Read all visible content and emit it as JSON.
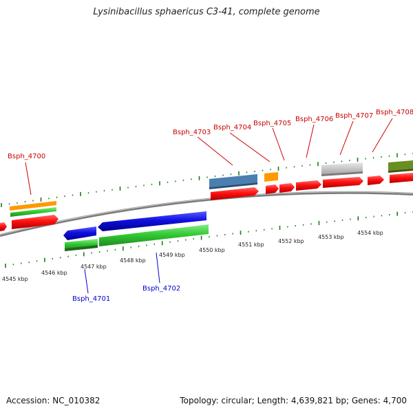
{
  "title": "Lysinibacillus sphaericus C3-41, complete genome",
  "footer": {
    "accession": "Accession: NC_010382",
    "summary": "Topology: circular; Length: 4,639,821 bp; Genes: 4,700"
  },
  "scale": {
    "ticks": [
      "4545 kbp",
      "4546 kbp",
      "4547 kbp",
      "4548 kbp",
      "4549 kbp",
      "4550 kbp",
      "4551 kbp",
      "4552 kbp",
      "4553 kbp",
      "4554 kbp"
    ]
  },
  "labels": {
    "top": [
      "Bsph_4700",
      "Bsph_4703",
      "Bsph_4704",
      "Bsph_4705",
      "Bsph_4706",
      "Bsph_4707",
      "Bsph_4708"
    ],
    "bottom": [
      "Bsph_4701",
      "Bsph_4702"
    ]
  },
  "colors": {
    "cds": "#ff1010",
    "gene_green": "#33cc33",
    "gene_orange": "#ff9900",
    "gene_blue": "#1010e0",
    "steelblue": "#4a7fb0",
    "gray": "#c8c8c8",
    "olive": "#6b8e23",
    "tick_green": "#1a7a1a",
    "backbone": "#909090"
  }
}
